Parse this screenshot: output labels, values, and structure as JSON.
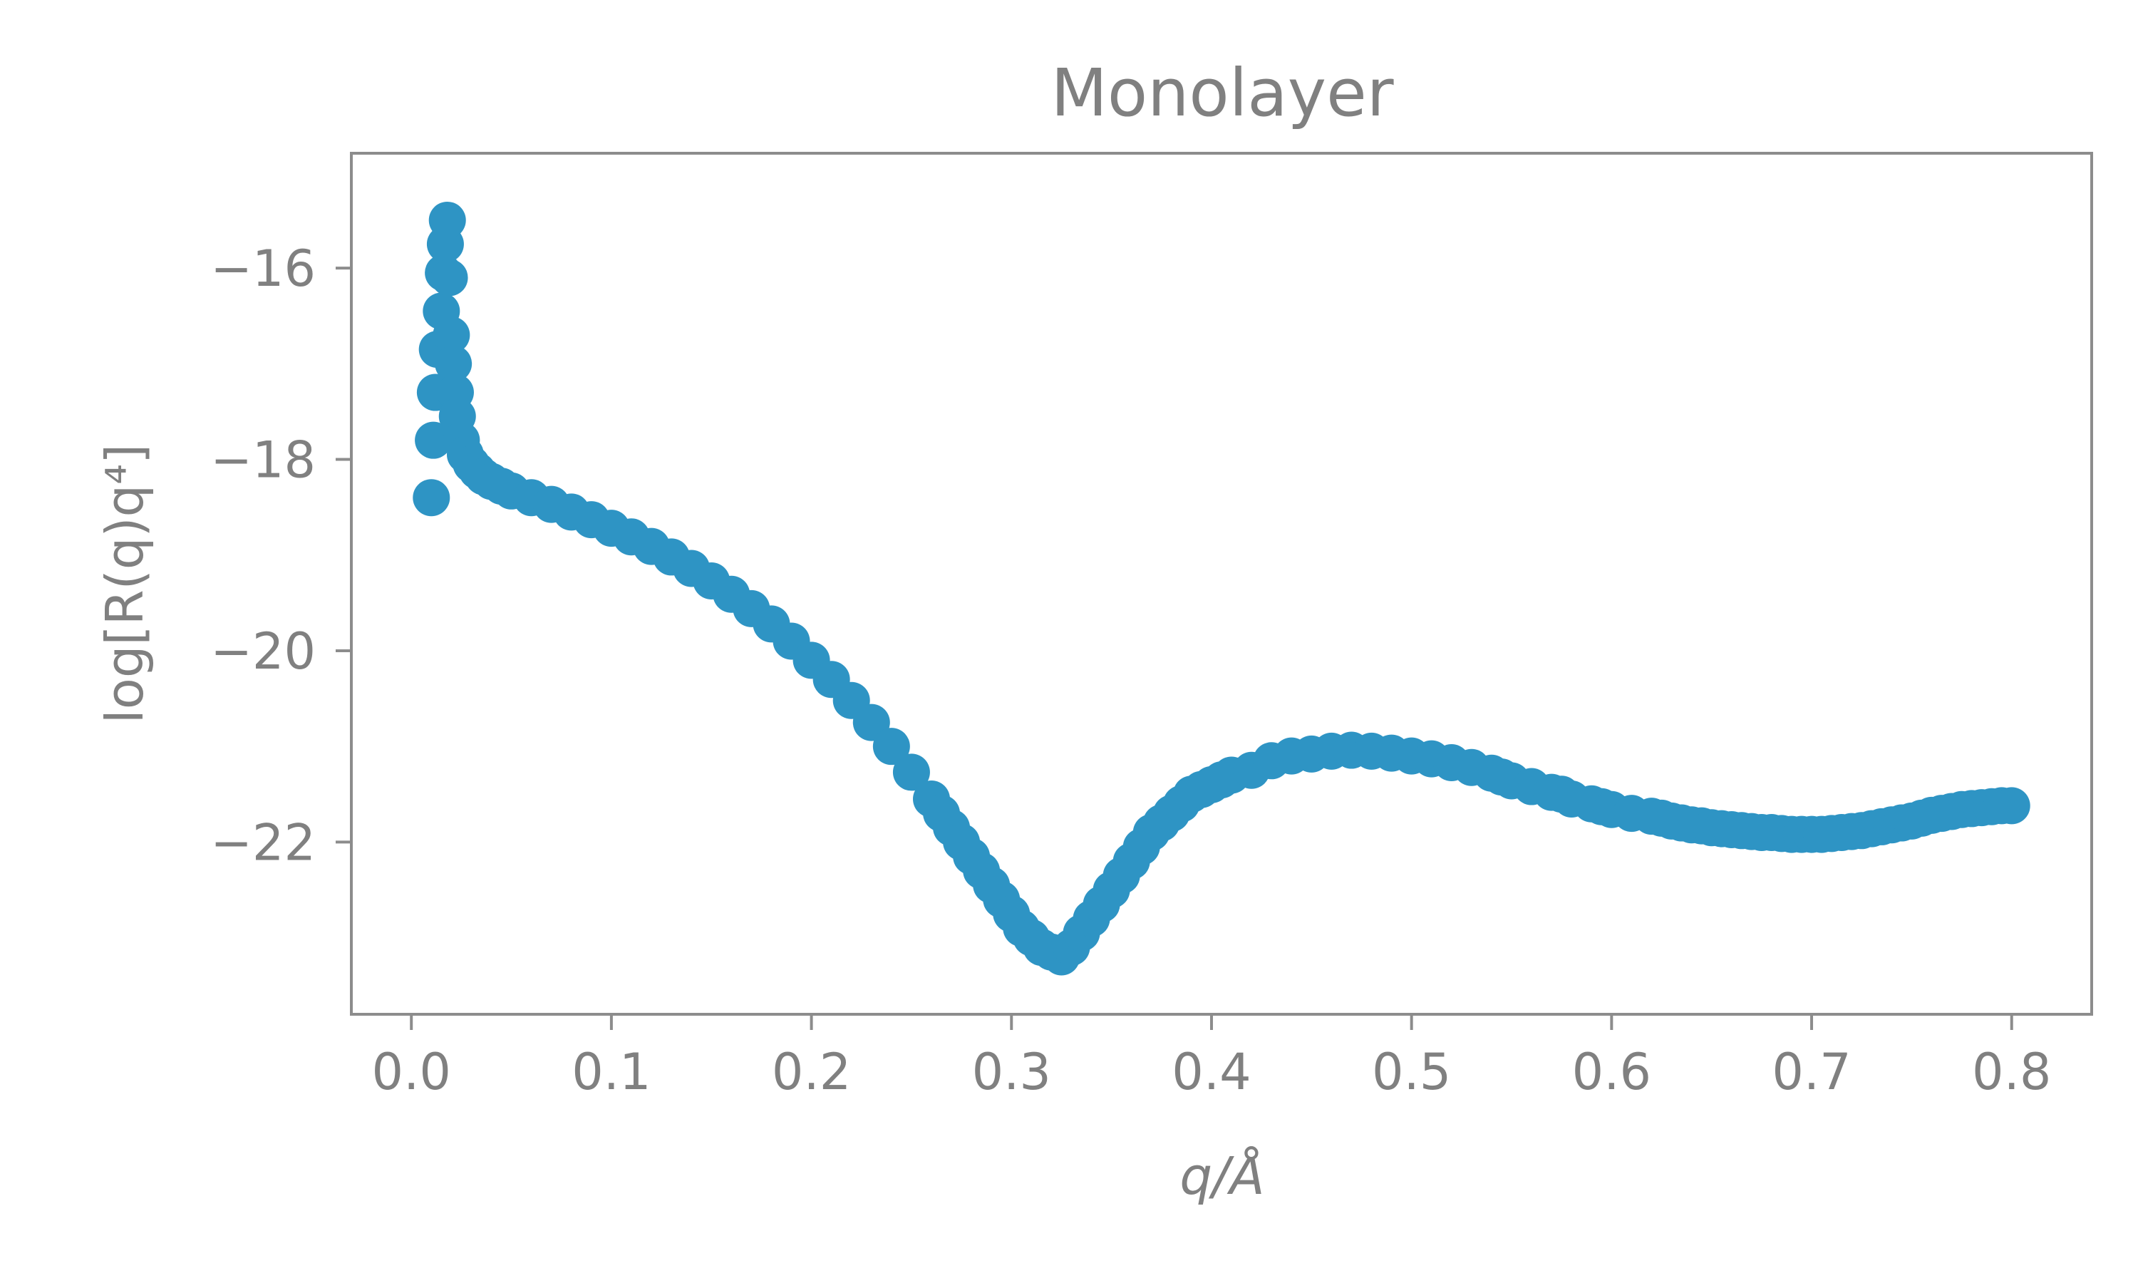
{
  "chart_data": {
    "type": "scatter",
    "title": "Monolayer",
    "xlabel": "q/Å",
    "ylabel": "log[R(q)q⁴]",
    "xlim": [
      -0.03,
      0.84
    ],
    "ylim": [
      -23.8,
      -14.8
    ],
    "xticks": [
      0.0,
      0.1,
      0.2,
      0.3,
      0.4,
      0.5,
      0.6,
      0.7,
      0.8
    ],
    "xtick_labels": [
      "0.0",
      "0.1",
      "0.2",
      "0.3",
      "0.4",
      "0.5",
      "0.6",
      "0.7",
      "0.8"
    ],
    "yticks": [
      -16,
      -18,
      -20,
      -22
    ],
    "ytick_labels": [
      "−16",
      "−18",
      "−20",
      "−22"
    ],
    "grid": false,
    "marker_color": "#2e94c4",
    "series": [
      {
        "x": [
          0.01,
          0.011,
          0.012,
          0.013,
          0.015,
          0.016,
          0.017,
          0.018,
          0.019,
          0.02,
          0.021,
          0.022,
          0.023,
          0.025,
          0.027,
          0.03,
          0.033,
          0.036,
          0.04,
          0.045,
          0.05,
          0.06,
          0.07,
          0.08,
          0.09,
          0.1,
          0.11,
          0.12,
          0.13,
          0.14,
          0.15,
          0.16,
          0.17,
          0.18,
          0.19,
          0.2,
          0.21,
          0.22,
          0.23,
          0.24,
          0.25,
          0.26,
          0.265,
          0.27,
          0.275,
          0.28,
          0.285,
          0.29,
          0.295,
          0.3,
          0.305,
          0.31,
          0.315,
          0.32,
          0.325,
          0.33,
          0.335,
          0.34,
          0.345,
          0.35,
          0.355,
          0.36,
          0.365,
          0.37,
          0.375,
          0.38,
          0.385,
          0.39,
          0.395,
          0.4,
          0.405,
          0.41,
          0.42,
          0.43,
          0.44,
          0.45,
          0.46,
          0.47,
          0.48,
          0.49,
          0.5,
          0.51,
          0.52,
          0.53,
          0.54,
          0.545,
          0.55,
          0.56,
          0.57,
          0.575,
          0.58,
          0.59,
          0.595,
          0.6,
          0.61,
          0.62,
          0.625,
          0.63,
          0.635,
          0.64,
          0.645,
          0.65,
          0.655,
          0.66,
          0.665,
          0.67,
          0.675,
          0.68,
          0.685,
          0.69,
          0.695,
          0.7,
          0.705,
          0.71,
          0.715,
          0.72,
          0.725,
          0.73,
          0.735,
          0.74,
          0.745,
          0.75,
          0.755,
          0.76,
          0.765,
          0.77,
          0.775,
          0.78,
          0.785,
          0.79,
          0.795,
          0.8
        ],
        "y": [
          -18.4,
          -17.8,
          -17.3,
          -16.85,
          -16.45,
          -16.05,
          -15.75,
          -15.5,
          -16.1,
          -16.7,
          -17.0,
          -17.3,
          -17.55,
          -17.8,
          -17.95,
          -18.05,
          -18.12,
          -18.18,
          -18.23,
          -18.28,
          -18.33,
          -18.4,
          -18.47,
          -18.55,
          -18.63,
          -18.72,
          -18.81,
          -18.91,
          -19.02,
          -19.14,
          -19.27,
          -19.41,
          -19.56,
          -19.72,
          -19.9,
          -20.1,
          -20.3,
          -20.52,
          -20.75,
          -21.0,
          -21.27,
          -21.55,
          -21.7,
          -21.85,
          -22.0,
          -22.15,
          -22.3,
          -22.45,
          -22.6,
          -22.75,
          -22.9,
          -23.0,
          -23.1,
          -23.15,
          -23.2,
          -23.1,
          -22.95,
          -22.8,
          -22.65,
          -22.5,
          -22.35,
          -22.2,
          -22.05,
          -21.9,
          -21.8,
          -21.7,
          -21.6,
          -21.5,
          -21.45,
          -21.4,
          -21.35,
          -21.3,
          -21.25,
          -21.15,
          -21.1,
          -21.08,
          -21.05,
          -21.04,
          -21.05,
          -21.07,
          -21.1,
          -21.13,
          -21.17,
          -21.22,
          -21.28,
          -21.32,
          -21.36,
          -21.42,
          -21.48,
          -21.5,
          -21.55,
          -21.6,
          -21.63,
          -21.66,
          -21.7,
          -21.73,
          -21.75,
          -21.78,
          -21.8,
          -21.82,
          -21.83,
          -21.85,
          -21.86,
          -21.87,
          -21.88,
          -21.89,
          -21.9,
          -21.9,
          -21.91,
          -21.92,
          -21.92,
          -21.92,
          -21.92,
          -21.91,
          -21.9,
          -21.89,
          -21.88,
          -21.86,
          -21.84,
          -21.82,
          -21.8,
          -21.78,
          -21.75,
          -21.72,
          -21.7,
          -21.68,
          -21.66,
          -21.65,
          -21.64,
          -21.63,
          -21.62,
          -21.62
        ]
      }
    ]
  }
}
